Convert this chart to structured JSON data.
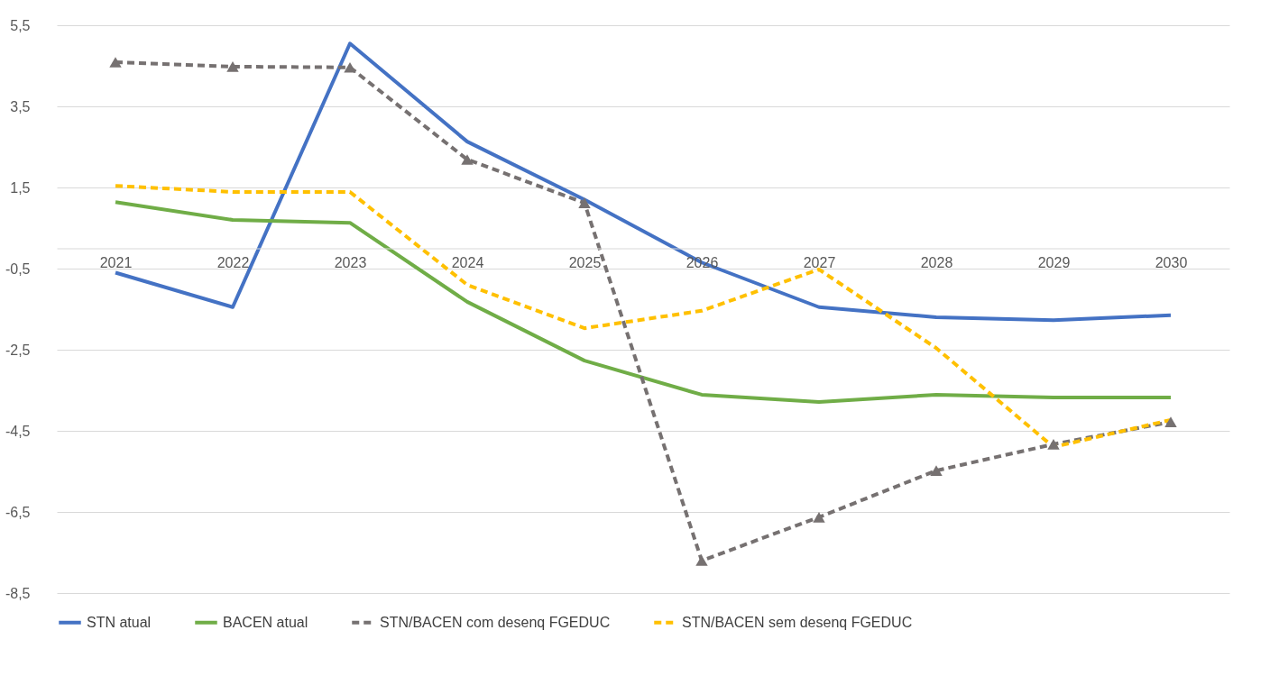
{
  "chart_data": {
    "type": "line",
    "categories": [
      "2021",
      "2022",
      "2023",
      "2024",
      "2025",
      "2026",
      "2027",
      "2028",
      "2029",
      "2030"
    ],
    "series": [
      {
        "name": "STN atual",
        "color": "#4472c4",
        "line_style": "solid",
        "marker": "none",
        "values": [
          -0.6,
          -1.45,
          5.05,
          2.63,
          1.2,
          -0.35,
          -1.45,
          -1.7,
          -1.77,
          -1.65
        ]
      },
      {
        "name": "BACEN atual",
        "color": "#70ad47",
        "line_style": "solid",
        "marker": "none",
        "values": [
          1.14,
          0.7,
          0.63,
          -1.32,
          -2.77,
          -3.61,
          -3.79,
          -3.61,
          -3.68,
          -3.68
        ]
      },
      {
        "name": "STN/BACEN com desenq FGEDUC",
        "color": "#767171",
        "line_style": "dashed",
        "marker": "triangle",
        "values": [
          4.59,
          4.48,
          4.46,
          2.19,
          1.12,
          -7.7,
          -6.63,
          -5.48,
          -4.83,
          -4.28
        ]
      },
      {
        "name": "STN/BACEN sem desenq FGEDUC",
        "color": "#ffc000",
        "line_style": "dashed",
        "marker": "none",
        "values": [
          1.54,
          1.39,
          1.39,
          -0.9,
          -1.97,
          -1.54,
          -0.52,
          -2.46,
          -4.9,
          -4.23
        ]
      }
    ],
    "ylim": [
      -8.5,
      5.5
    ],
    "yticks": [
      {
        "value": 5.5,
        "label": "5,5"
      },
      {
        "value": 3.5,
        "label": "3,5"
      },
      {
        "value": 1.5,
        "label": "1,5"
      },
      {
        "value": -0.5,
        "label": "-0,5"
      },
      {
        "value": -2.5,
        "label": "-2,5"
      },
      {
        "value": -4.5,
        "label": "-4,5"
      },
      {
        "value": -6.5,
        "label": "-6,5"
      },
      {
        "value": -8.5,
        "label": "-8,5"
      }
    ],
    "grid": "y",
    "legend": "bottom"
  }
}
